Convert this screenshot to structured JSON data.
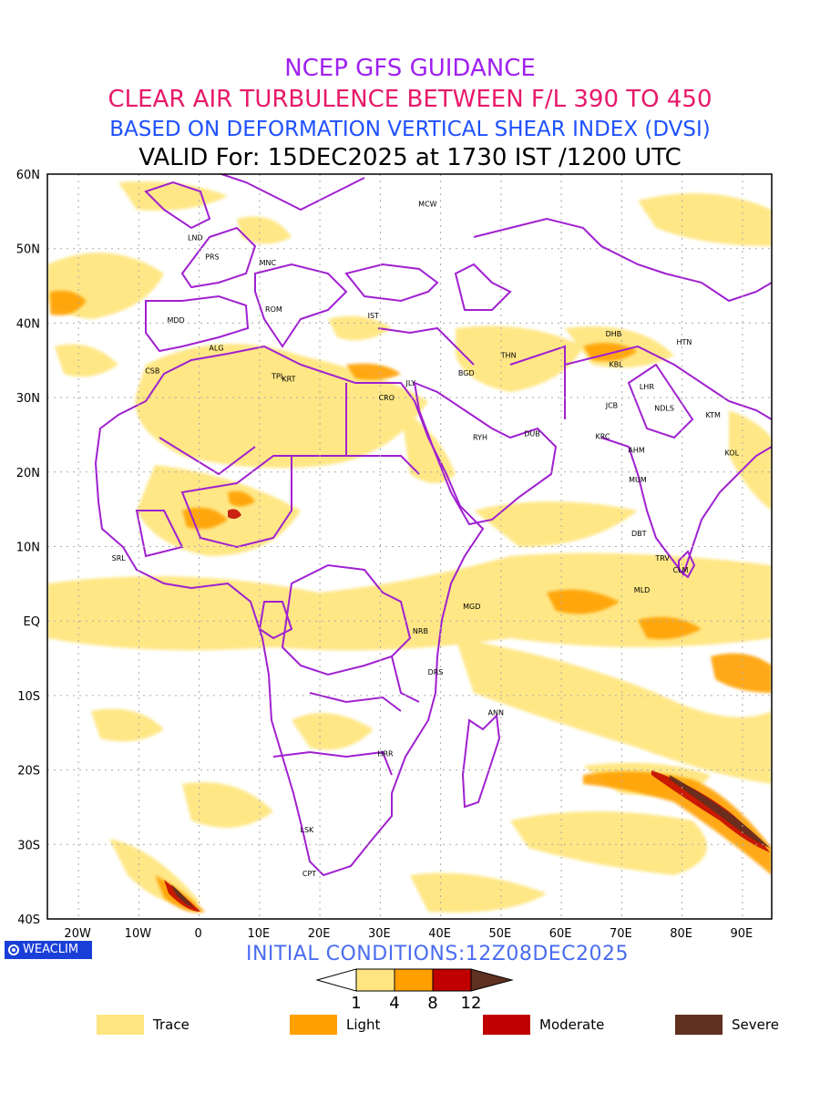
{
  "header": {
    "line1": "NCEP GFS GUIDANCE",
    "line2": "CLEAR AIR TURBULENCE BETWEEN F/L 390 TO 450",
    "line3": "BASED ON DEFORMATION VERTICAL SHEAR INDEX (DVSI)",
    "line4": "VALID For: 15DEC2025 at 1730 IST /1200 UTC"
  },
  "map": {
    "lat_labels": [
      "60N",
      "50N",
      "40N",
      "30N",
      "20N",
      "10N",
      "EQ",
      "10S",
      "20S",
      "30S",
      "40S"
    ],
    "lon_labels": [
      "20W",
      "10W",
      "0",
      "10E",
      "20E",
      "30E",
      "40E",
      "50E",
      "60E",
      "70E",
      "80E",
      "90E"
    ],
    "lat_range": [
      -40,
      60
    ],
    "lon_range": [
      -25,
      95
    ],
    "grid": "dotted",
    "coastline_color": "#a020d0",
    "cities": [
      {
        "name": "MCW",
        "lon": 38,
        "lat": 56
      },
      {
        "name": "LND",
        "lon": -0.5,
        "lat": 51.5
      },
      {
        "name": "PRS",
        "lon": 2.3,
        "lat": 48.9
      },
      {
        "name": "MNC",
        "lon": 11.5,
        "lat": 48.1
      },
      {
        "name": "ROM",
        "lon": 12.5,
        "lat": 41.9
      },
      {
        "name": "IST",
        "lon": 29,
        "lat": 41
      },
      {
        "name": "MDD",
        "lon": -3.7,
        "lat": 40.4
      },
      {
        "name": "ALG",
        "lon": 3,
        "lat": 36.7
      },
      {
        "name": "CSB",
        "lon": -7.6,
        "lat": 33.6
      },
      {
        "name": "TPL",
        "lon": 13.2,
        "lat": 32.9
      },
      {
        "name": "KRT",
        "lon": 15,
        "lat": 32.5
      },
      {
        "name": "CRO",
        "lon": 31.2,
        "lat": 30
      },
      {
        "name": "JLY",
        "lon": 35.2,
        "lat": 32
      },
      {
        "name": "BGD",
        "lon": 44.4,
        "lat": 33.3
      },
      {
        "name": "THN",
        "lon": 51.4,
        "lat": 35.7
      },
      {
        "name": "DHB",
        "lon": 68.8,
        "lat": 38.6
      },
      {
        "name": "HTN",
        "lon": 80.5,
        "lat": 37.5
      },
      {
        "name": "KBL",
        "lon": 69.2,
        "lat": 34.5
      },
      {
        "name": "LHR",
        "lon": 74.3,
        "lat": 31.5
      },
      {
        "name": "JCB",
        "lon": 68.5,
        "lat": 29
      },
      {
        "name": "NDLS",
        "lon": 77.2,
        "lat": 28.6
      },
      {
        "name": "KTM",
        "lon": 85.3,
        "lat": 27.7
      },
      {
        "name": "RYH",
        "lon": 46.7,
        "lat": 24.7
      },
      {
        "name": "DUB",
        "lon": 55.3,
        "lat": 25.2
      },
      {
        "name": "KRC",
        "lon": 67,
        "lat": 24.8
      },
      {
        "name": "AHM",
        "lon": 72.6,
        "lat": 23
      },
      {
        "name": "KOL",
        "lon": 88.4,
        "lat": 22.6
      },
      {
        "name": "MUM",
        "lon": 72.8,
        "lat": 19
      },
      {
        "name": "DBT",
        "lon": 73,
        "lat": 11.8
      },
      {
        "name": "TRV",
        "lon": 76.9,
        "lat": 8.5
      },
      {
        "name": "CLM",
        "lon": 79.9,
        "lat": 6.9
      },
      {
        "name": "SRL",
        "lon": -13.2,
        "lat": 8.5
      },
      {
        "name": "MLD",
        "lon": 73.5,
        "lat": 4.2
      },
      {
        "name": "MGD",
        "lon": 45.3,
        "lat": 2
      },
      {
        "name": "NRB",
        "lon": 36.8,
        "lat": -1.3
      },
      {
        "name": "DRS",
        "lon": 39.3,
        "lat": -6.8
      },
      {
        "name": "ANN",
        "lon": 49.3,
        "lat": -12.3
      },
      {
        "name": "HRR",
        "lon": 31,
        "lat": -17.8
      },
      {
        "name": "LSK",
        "lon": 18,
        "lat": -28
      },
      {
        "name": "CPT",
        "lon": 18.4,
        "lat": -33.9
      }
    ]
  },
  "brand": {
    "label": "WEACLIM"
  },
  "initial_conditions": "INITIAL CONDITIONS:12Z08DEC2025",
  "colorbar": {
    "ticks": [
      "1",
      "4",
      "8",
      "12"
    ],
    "colors": [
      "#ffe680",
      "#ffa000",
      "#c00000",
      "#603020"
    ]
  },
  "legend": [
    {
      "label": "Trace",
      "color": "#ffe680"
    },
    {
      "label": "Light",
      "color": "#ffa000"
    },
    {
      "label": "Moderate",
      "color": "#c00000"
    },
    {
      "label": "Severe",
      "color": "#603020"
    }
  ]
}
